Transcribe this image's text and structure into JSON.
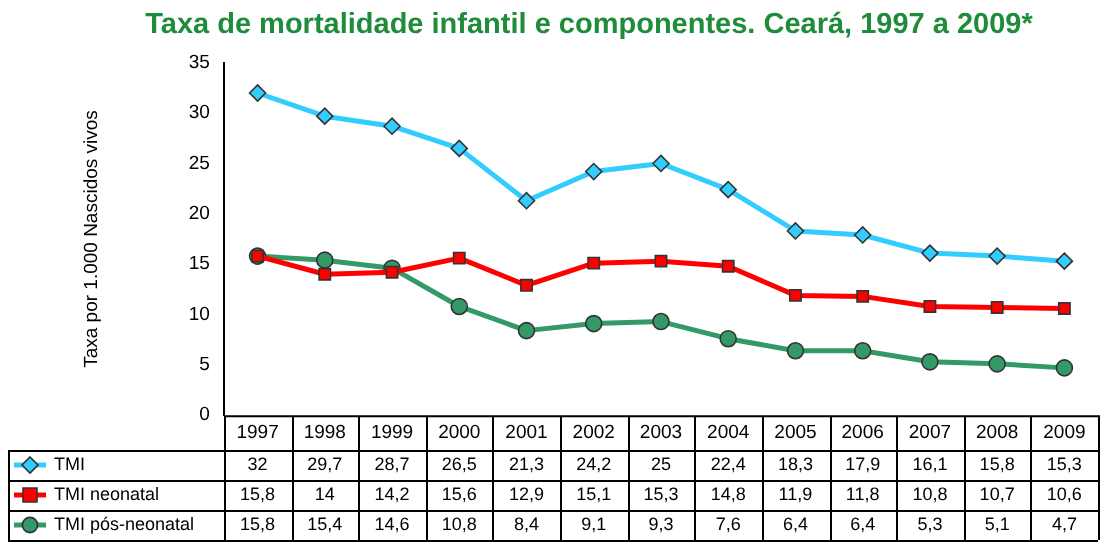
{
  "chart_data": {
    "type": "line",
    "title": "Taxa de mortalidade infantil e componentes. Ceará, 1997 a 2009*",
    "ylabel": "Taxa por 1.000 Nascidos vivos",
    "categories": [
      "1997",
      "1998",
      "1999",
      "2000",
      "2001",
      "2002",
      "2003",
      "2004",
      "2005",
      "2006",
      "2007",
      "2008",
      "2009"
    ],
    "series": [
      {
        "name": "TMI",
        "color": "#33ccff",
        "marker": "diamond",
        "values": [
          32,
          29.7,
          28.7,
          26.5,
          21.3,
          24.2,
          25,
          22.4,
          18.3,
          17.9,
          16.1,
          15.8,
          15.3
        ],
        "value_labels": [
          "32",
          "29,7",
          "28,7",
          "26,5",
          "21,3",
          "24,2",
          "25",
          "22,4",
          "18,3",
          "17,9",
          "16,1",
          "15,8",
          "15,3"
        ]
      },
      {
        "name": "TMI neonatal",
        "color": "#ff0000",
        "marker": "square",
        "values": [
          15.8,
          14,
          14.2,
          15.6,
          12.9,
          15.1,
          15.3,
          14.8,
          11.9,
          11.8,
          10.8,
          10.7,
          10.6
        ],
        "value_labels": [
          "15,8",
          "14",
          "14,2",
          "15,6",
          "12,9",
          "15,1",
          "15,3",
          "14,8",
          "11,9",
          "11,8",
          "10,8",
          "10,7",
          "10,6"
        ]
      },
      {
        "name": "TMI pós-neonatal",
        "color": "#339966",
        "marker": "circle",
        "values": [
          15.8,
          15.4,
          14.6,
          10.8,
          8.4,
          9.1,
          9.3,
          7.6,
          6.4,
          6.4,
          5.3,
          5.1,
          4.7
        ],
        "value_labels": [
          "15,8",
          "15,4",
          "14,6",
          "10,8",
          "8,4",
          "9,1",
          "9,3",
          "7,6",
          "6,4",
          "6,4",
          "5,3",
          "5,1",
          "4,7"
        ]
      }
    ],
    "ylim": [
      0,
      35
    ],
    "yticks": [
      0,
      5,
      10,
      15,
      20,
      25,
      30,
      35
    ],
    "grid": false,
    "legend": "bottom"
  }
}
